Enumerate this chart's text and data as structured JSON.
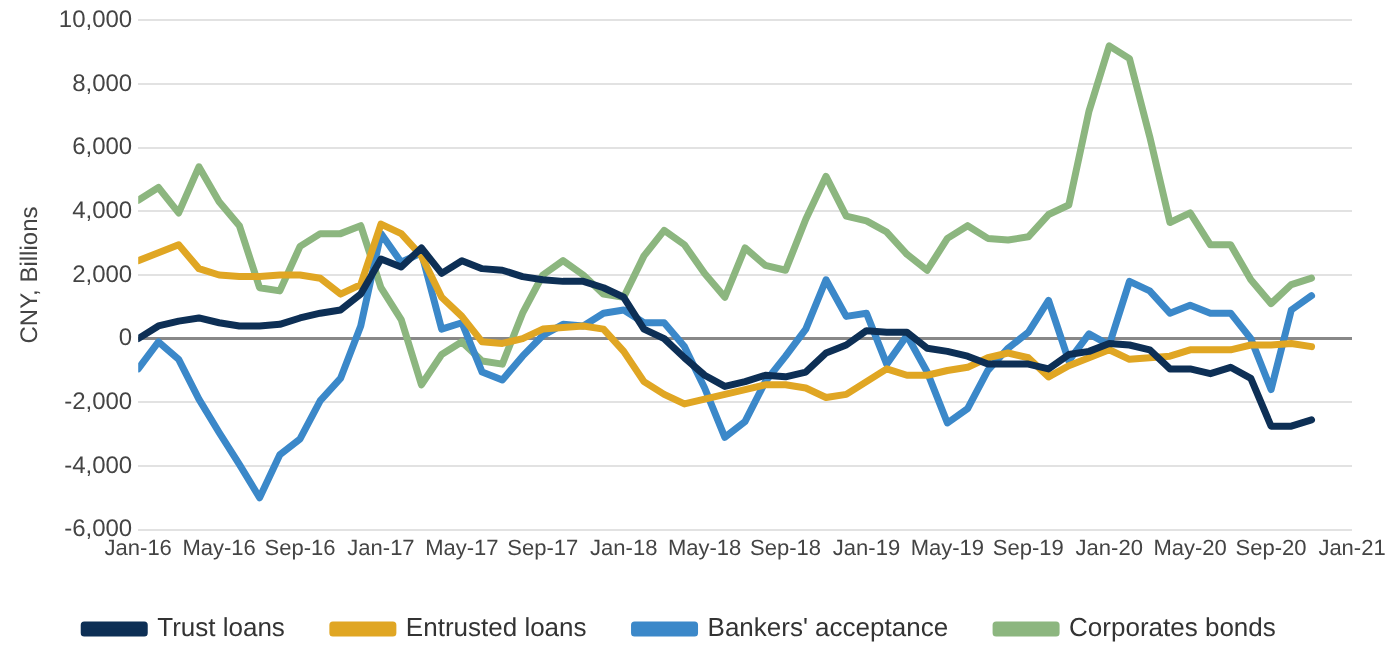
{
  "chart_data": {
    "type": "line",
    "ylabel": "CNY, Billions",
    "x": [
      "2016-01",
      "2016-02",
      "2016-03",
      "2016-04",
      "2016-05",
      "2016-06",
      "2016-07",
      "2016-08",
      "2016-09",
      "2016-10",
      "2016-11",
      "2016-12",
      "2017-01",
      "2017-02",
      "2017-03",
      "2017-04",
      "2017-05",
      "2017-06",
      "2017-07",
      "2017-08",
      "2017-09",
      "2017-10",
      "2017-11",
      "2017-12",
      "2018-01",
      "2018-02",
      "2018-03",
      "2018-04",
      "2018-05",
      "2018-06",
      "2018-07",
      "2018-08",
      "2018-09",
      "2018-10",
      "2018-11",
      "2018-12",
      "2019-01",
      "2019-02",
      "2019-03",
      "2019-04",
      "2019-05",
      "2019-06",
      "2019-07",
      "2019-08",
      "2019-09",
      "2019-10",
      "2019-11",
      "2019-12",
      "2020-01",
      "2020-02",
      "2020-03",
      "2020-04",
      "2020-05",
      "2020-06",
      "2020-07",
      "2020-08",
      "2020-09",
      "2020-10",
      "2020-11"
    ],
    "series": [
      {
        "name": "Trust loans",
        "color": "#0d2f55",
        "values": [
          0,
          400,
          550,
          650,
          500,
          400,
          400,
          450,
          650,
          800,
          900,
          1400,
          2500,
          2250,
          2850,
          2050,
          2450,
          2200,
          2150,
          1950,
          1850,
          1800,
          1800,
          1600,
          1300,
          300,
          0,
          -600,
          -1150,
          -1500,
          -1350,
          -1150,
          -1200,
          -1050,
          -450,
          -200,
          250,
          200,
          200,
          -300,
          -400,
          -550,
          -800,
          -800,
          -800,
          -950,
          -500,
          -400,
          -150,
          -200,
          -350,
          -950,
          -950,
          -1100,
          -900,
          -1250,
          -2750,
          -2750,
          -2550
        ]
      },
      {
        "name": "Entrusted loans",
        "color": "#e0a623",
        "values": [
          2450,
          2700,
          2950,
          2200,
          2000,
          1950,
          1950,
          2000,
          2000,
          1900,
          1400,
          1700,
          3600,
          3300,
          2600,
          1300,
          700,
          -100,
          -150,
          0,
          300,
          350,
          400,
          300,
          -400,
          -1350,
          -1750,
          -2050,
          -1900,
          -1750,
          -1600,
          -1450,
          -1450,
          -1550,
          -1850,
          -1750,
          -1350,
          -950,
          -1150,
          -1150,
          -1000,
          -900,
          -600,
          -450,
          -600,
          -1200,
          -850,
          -600,
          -350,
          -650,
          -600,
          -550,
          -350,
          -350,
          -350,
          -200,
          -200,
          -150,
          -250
        ]
      },
      {
        "name": "Bankers' acceptance",
        "color": "#3b88c9",
        "values": [
          -950,
          -100,
          -650,
          -1900,
          -2950,
          -3950,
          -5000,
          -3650,
          -3150,
          -1950,
          -1250,
          400,
          3300,
          2400,
          2700,
          300,
          500,
          -1050,
          -1300,
          -550,
          100,
          450,
          400,
          800,
          900,
          500,
          500,
          -250,
          -1550,
          -3100,
          -2600,
          -1350,
          -550,
          300,
          1850,
          700,
          800,
          -800,
          100,
          -1050,
          -2650,
          -2200,
          -1000,
          -300,
          200,
          1200,
          -700,
          150,
          -200,
          1800,
          1500,
          800,
          1050,
          800,
          800,
          0,
          -1600,
          900,
          1350
        ]
      },
      {
        "name": "Corporates bonds",
        "color": "#8cb67f",
        "values": [
          4350,
          4750,
          3950,
          5400,
          4300,
          3550,
          1600,
          1500,
          2900,
          3300,
          3300,
          3550,
          1600,
          600,
          -1450,
          -500,
          -100,
          -700,
          -800,
          800,
          2000,
          2450,
          2000,
          1400,
          1300,
          2600,
          3400,
          2950,
          2050,
          1300,
          2850,
          2300,
          2150,
          3750,
          5100,
          3850,
          3700,
          3350,
          2650,
          2150,
          3150,
          3550,
          3150,
          3100,
          3200,
          3900,
          4200,
          7150,
          9200,
          8800,
          6350,
          3650,
          3950,
          2950,
          2950,
          1850,
          1100,
          1700,
          1900
        ]
      }
    ],
    "xlim": [
      "2016-01",
      "2021-01"
    ],
    "xticks": [
      {
        "value": "2016-01",
        "label": "Jan-16"
      },
      {
        "value": "2016-05",
        "label": "May-16"
      },
      {
        "value": "2016-09",
        "label": "Sep-16"
      },
      {
        "value": "2017-01",
        "label": "Jan-17"
      },
      {
        "value": "2017-05",
        "label": "May-17"
      },
      {
        "value": "2017-09",
        "label": "Sep-17"
      },
      {
        "value": "2018-01",
        "label": "Jan-18"
      },
      {
        "value": "2018-05",
        "label": "May-18"
      },
      {
        "value": "2018-09",
        "label": "Sep-18"
      },
      {
        "value": "2019-01",
        "label": "Jan-19"
      },
      {
        "value": "2019-05",
        "label": "May-19"
      },
      {
        "value": "2019-09",
        "label": "Sep-19"
      },
      {
        "value": "2020-01",
        "label": "Jan-20"
      },
      {
        "value": "2020-05",
        "label": "May-20"
      },
      {
        "value": "2020-09",
        "label": "Sep-20"
      },
      {
        "value": "2021-01",
        "label": "Jan-21"
      }
    ],
    "ylim": [
      -6000,
      10000
    ],
    "yticks": [
      {
        "value": -6000,
        "label": "-6,000"
      },
      {
        "value": -4000,
        "label": "-4,000"
      },
      {
        "value": -2000,
        "label": "-2,000"
      },
      0,
      {
        "value": 2000,
        "label": "2,000"
      },
      {
        "value": 4000,
        "label": "4,000"
      },
      {
        "value": 6000,
        "label": "6,000"
      },
      {
        "value": 8000,
        "label": "8,000"
      },
      {
        "value": 10000,
        "label": "10,000"
      }
    ],
    "grid": "y",
    "legend": "bottom",
    "marker": "none",
    "line_style": "solid"
  }
}
